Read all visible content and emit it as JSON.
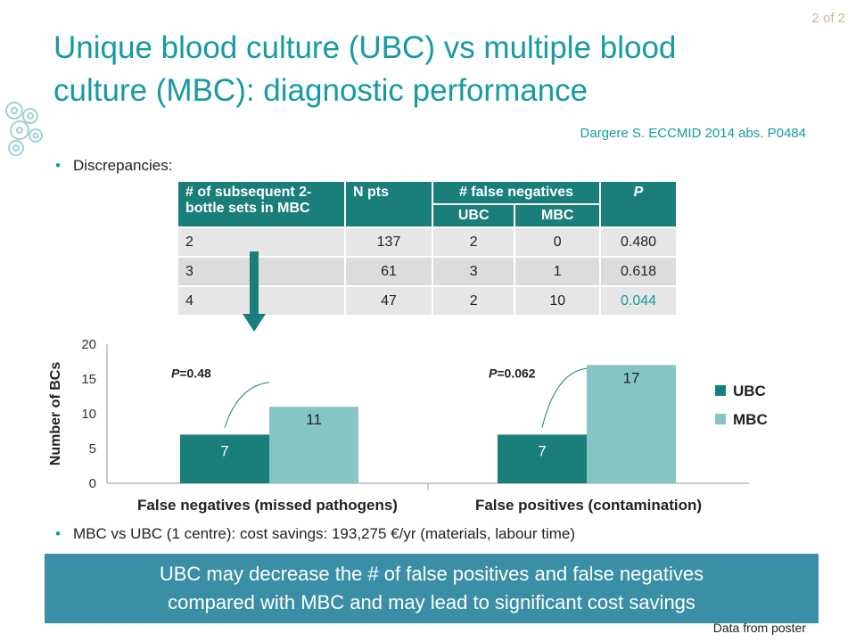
{
  "page": {
    "number": "2 of 2"
  },
  "title": {
    "line1": "Unique blood culture (UBC) vs multiple blood",
    "line2": "culture (MBC): diagnostic performance"
  },
  "reference": "Dargere S. ECCMID 2014 abs. P0484",
  "bullets": [
    "Discrepancies:",
    "MBC vs UBC (1 centre): cost savings: 193,275 €/yr (materials, labour time)"
  ],
  "table": {
    "headers": {
      "col1": "# of subsequent 2-bottle sets in MBC",
      "col2": "N pts",
      "col3": "# false negatives",
      "col3a": "UBC",
      "col3b": "MBC",
      "col4": "P"
    },
    "rows": [
      [
        "2",
        "137",
        "2",
        "0",
        "0.480"
      ],
      [
        "3",
        "61",
        "3",
        "1",
        "0.618"
      ],
      [
        "4",
        "47",
        "2",
        "10",
        "0.044"
      ]
    ]
  },
  "chart_data": {
    "type": "bar",
    "categories": [
      "False negatives (missed pathogens)",
      "False positives (contamination)"
    ],
    "series": [
      {
        "name": "UBC",
        "values": [
          7,
          7
        ],
        "color": "#1a7f7a"
      },
      {
        "name": "MBC",
        "values": [
          11,
          17
        ],
        "color": "#86c5c5"
      }
    ],
    "ylabel": "Number of BCs",
    "ylim": [
      0,
      20
    ],
    "yticks": [
      "0",
      "5",
      "10",
      "15",
      "20"
    ],
    "annotations": [
      {
        "prefix": "P",
        "text": "=0.48"
      },
      {
        "prefix": "P",
        "text": "=0.062"
      }
    ],
    "legend_position": "right"
  },
  "callout": {
    "line1": "UBC may decrease the # of false positives and false negatives",
    "line2": "compared with MBC and may lead to significant cost savings"
  },
  "source": "Data from poster",
  "colors": {
    "accent": "#159ba0",
    "dark_teal": "#1a7f7a",
    "light_teal": "#86c5c5",
    "callout": "#3a8fa6"
  }
}
